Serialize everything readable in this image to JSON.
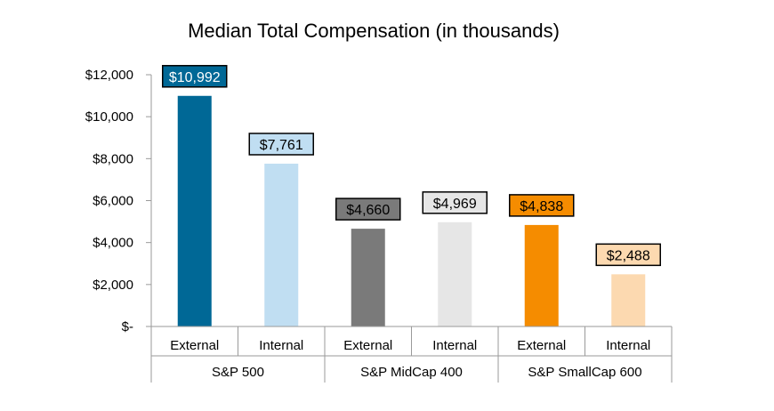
{
  "chart_data": {
    "type": "bar",
    "title": "Median Total Compensation (in thousands)",
    "xlabel": "",
    "ylabel": "",
    "ylim": [
      0,
      12000
    ],
    "yticks": [
      0,
      2000,
      4000,
      6000,
      8000,
      10000,
      12000
    ],
    "ytick_labels": [
      "$-",
      "$2,000",
      "$4,000",
      "$6,000",
      "$8,000",
      "$10,000",
      "$12,000"
    ],
    "grid": false,
    "legend": "none",
    "groups": [
      {
        "label": "S&P 500",
        "bars": [
          {
            "category": "External",
            "value": 10992,
            "data_label": "$10,992",
            "color": "#006896",
            "label_fill": "#006896",
            "label_text_color": "#ffffff"
          },
          {
            "category": "Internal",
            "value": 7761,
            "data_label": "$7,761",
            "color": "#c0def2",
            "label_fill": "#c0def2",
            "label_text_color": "#000000"
          }
        ]
      },
      {
        "label": "S&P MidCap 400",
        "bars": [
          {
            "category": "External",
            "value": 4660,
            "data_label": "$4,660",
            "color": "#7a7a7a",
            "label_fill": "#7a7a7a",
            "label_text_color": "#000000"
          },
          {
            "category": "Internal",
            "value": 4969,
            "data_label": "$4,969",
            "color": "#e6e6e6",
            "label_fill": "#e6e6e6",
            "label_text_color": "#000000"
          }
        ]
      },
      {
        "label": "S&P SmallCap 600",
        "bars": [
          {
            "category": "External",
            "value": 4838,
            "data_label": "$4,838",
            "color": "#f58c00",
            "label_fill": "#f58c00",
            "label_text_color": "#000000"
          },
          {
            "category": "Internal",
            "value": 2488,
            "data_label": "$2,488",
            "color": "#fcd9b0",
            "label_fill": "#fcd9b0",
            "label_text_color": "#000000"
          }
        ]
      }
    ]
  }
}
